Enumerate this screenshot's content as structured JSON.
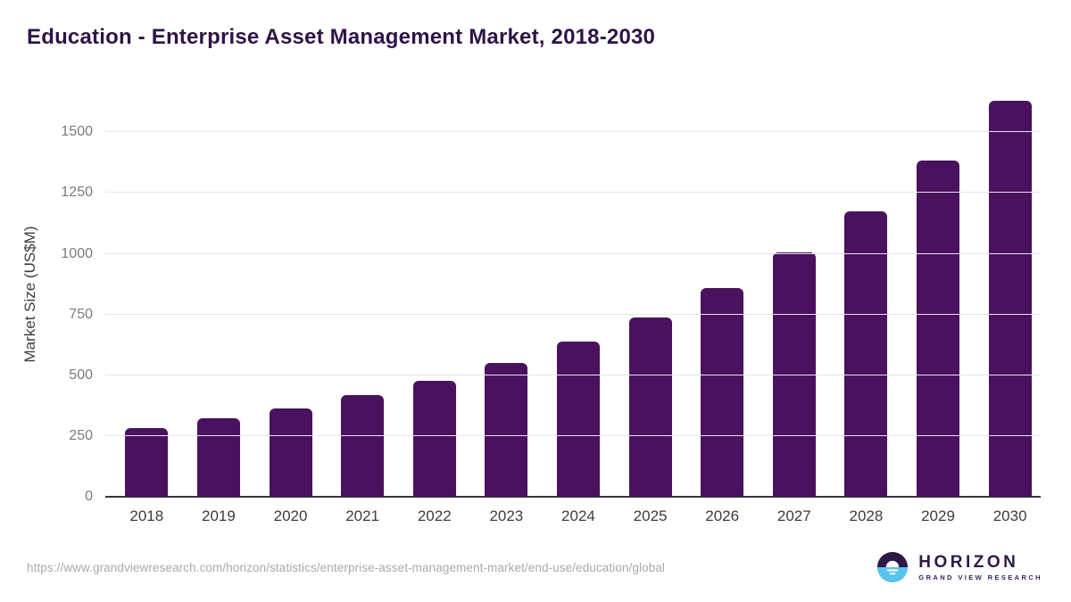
{
  "header": {
    "title": "Education - Enterprise Asset Management Market, 2018-2030"
  },
  "chart_data": {
    "type": "bar",
    "title": "Education - Enterprise Asset Management Market, 2018-2030",
    "categories": [
      "2018",
      "2019",
      "2020",
      "2021",
      "2022",
      "2023",
      "2024",
      "2025",
      "2026",
      "2027",
      "2028",
      "2029",
      "2030"
    ],
    "values": [
      283,
      324,
      364,
      420,
      478,
      549,
      637,
      738,
      860,
      1005,
      1176,
      1384,
      1630
    ],
    "xlabel": "",
    "ylabel": "Market Size (US$M)",
    "ylim": [
      0,
      1677
    ],
    "yticks": [
      0,
      250,
      500,
      750,
      1000,
      1250,
      1500
    ],
    "grid": "horizontal gridlines on",
    "legend": "none",
    "bar_color": "#49115e"
  },
  "colors": {
    "title": "#2f1347",
    "bar": "#49115e",
    "gridline": "#e7e7e9",
    "axis_line": "#37373c",
    "y_tick_label": "#7b7b7b",
    "x_tick_label": "#3d3d3d",
    "source_url": "#a9a9a9",
    "logo_purple": "#2e1a47",
    "logo_blue": "#58c4ec"
  },
  "footer": {
    "source_url": "https://www.grandviewresearch.com/horizon/statistics/enterprise-asset-management-market/end-use/education/global",
    "logo": {
      "icon": "horizon-sunrise-circle-icon",
      "brand": "HORIZON",
      "subbrand": "GRAND VIEW RESEARCH"
    }
  }
}
